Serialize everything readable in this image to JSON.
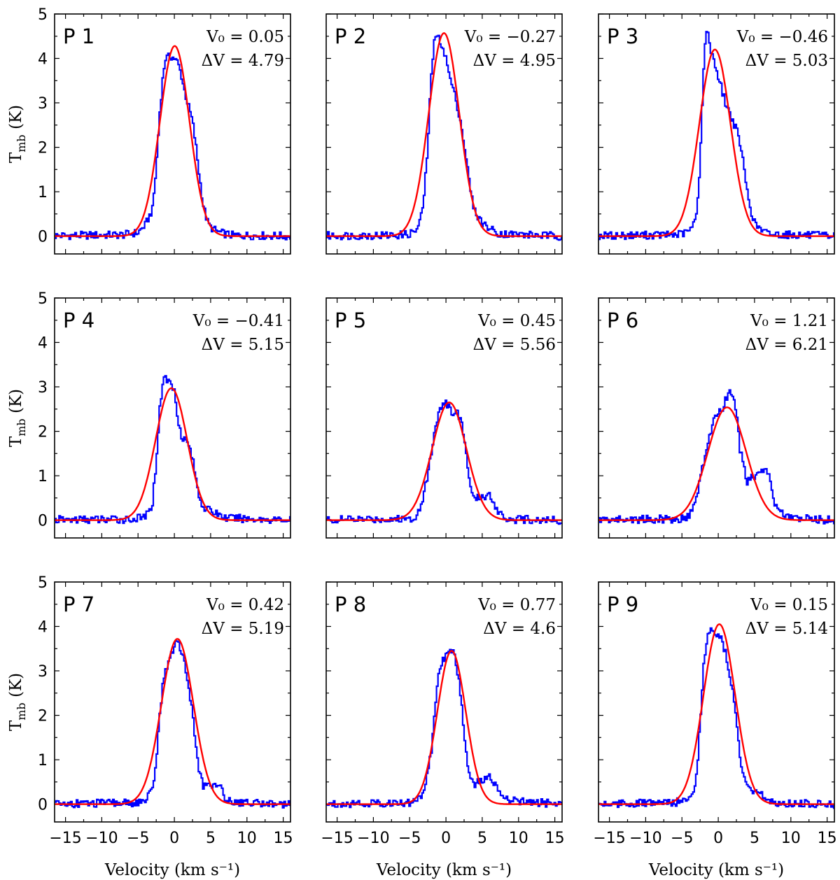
{
  "chart_data": {
    "type": "line",
    "title": "",
    "xlabel": "Velocity (km s⁻¹)",
    "ylabel": "T",
    "ylabel_sub": "mb",
    "ylabel_unit": "(K)",
    "xlim": [
      -16.5,
      16
    ],
    "ylim": [
      -0.4,
      5
    ],
    "xticks": [
      -15,
      -10,
      -5,
      0,
      5,
      10,
      15
    ],
    "xtick_labels": [
      "−15",
      "−10",
      "−5",
      "0",
      "5",
      "10",
      "15"
    ],
    "yticks": [
      0,
      1,
      2,
      3,
      4,
      5
    ],
    "ytick_labels": [
      "0",
      "1",
      "2",
      "3",
      "4",
      "5"
    ],
    "colors": {
      "observed": "#0000ff",
      "fit": "#ff0000"
    },
    "series_names": [
      "observed spectrum",
      "gaussian fit"
    ],
    "panels": [
      {
        "label": "P 1",
        "v0_text": "V₀ = 0.05",
        "dv_text": "ΔV = 4.79",
        "fit": {
          "amp": 4.28,
          "v0": 0.05,
          "fwhm": 4.79
        },
        "observed": [
          [
            -16.5,
            0.01
          ],
          [
            -7,
            0.03
          ],
          [
            -5,
            0.08
          ],
          [
            -4,
            0.25
          ],
          [
            -3,
            0.6
          ],
          [
            -2.5,
            1.5
          ],
          [
            -2,
            2.8
          ],
          [
            -1.5,
            3.7
          ],
          [
            -1.2,
            4.0
          ],
          [
            -0.5,
            4.05
          ],
          [
            0,
            4.0
          ],
          [
            0.5,
            3.9
          ],
          [
            1,
            3.6
          ],
          [
            1.5,
            3.2
          ],
          [
            2,
            2.9
          ],
          [
            2.5,
            2.6
          ],
          [
            3,
            2.0
          ],
          [
            3.5,
            1.3
          ],
          [
            4,
            0.7
          ],
          [
            4.5,
            0.35
          ],
          [
            5,
            0.2
          ],
          [
            6,
            0.1
          ],
          [
            7,
            0.05
          ],
          [
            8,
            0.02
          ],
          [
            16,
            0.0
          ]
        ]
      },
      {
        "label": "P 2",
        "v0_text": "V₀ = −0.27",
        "dv_text": "ΔV = 4.95",
        "fit": {
          "amp": 4.57,
          "v0": -0.27,
          "fwhm": 4.95
        },
        "observed": [
          [
            -16.5,
            0.01
          ],
          [
            -7,
            0.02
          ],
          [
            -5,
            0.05
          ],
          [
            -4,
            0.15
          ],
          [
            -3.5,
            0.35
          ],
          [
            -3,
            0.9
          ],
          [
            -2.5,
            2.0
          ],
          [
            -2,
            3.7
          ],
          [
            -1.5,
            4.5
          ],
          [
            -1,
            4.45
          ],
          [
            -0.5,
            4.3
          ],
          [
            0,
            4.0
          ],
          [
            0.5,
            3.6
          ],
          [
            1,
            3.3
          ],
          [
            1.5,
            3.0
          ],
          [
            2,
            2.6
          ],
          [
            2.5,
            2.1
          ],
          [
            3,
            1.5
          ],
          [
            3.5,
            0.9
          ],
          [
            4,
            0.55
          ],
          [
            5,
            0.3
          ],
          [
            6,
            0.18
          ],
          [
            7,
            0.08
          ],
          [
            8,
            0.05
          ],
          [
            16,
            0.0
          ]
        ]
      },
      {
        "label": "P 3",
        "v0_text": "V₀ = −0.46",
        "dv_text": "ΔV = 5.03",
        "fit": {
          "amp": 4.2,
          "v0": -0.46,
          "fwhm": 5.03
        },
        "observed": [
          [
            -16.5,
            0.01
          ],
          [
            -6,
            0.03
          ],
          [
            -4.5,
            0.07
          ],
          [
            -3.5,
            0.2
          ],
          [
            -3,
            0.5
          ],
          [
            -2.5,
            1.6
          ],
          [
            -2.2,
            3.0
          ],
          [
            -1.8,
            4.4
          ],
          [
            -1.5,
            4.6
          ],
          [
            -1,
            4.2
          ],
          [
            -0.5,
            3.9
          ],
          [
            0,
            3.6
          ],
          [
            0.5,
            3.3
          ],
          [
            1,
            3.0
          ],
          [
            1.5,
            2.8
          ],
          [
            2,
            2.6
          ],
          [
            2.5,
            2.4
          ],
          [
            3,
            2.1
          ],
          [
            3.5,
            1.6
          ],
          [
            4,
            1.0
          ],
          [
            4.5,
            0.6
          ],
          [
            5,
            0.3
          ],
          [
            6,
            0.12
          ],
          [
            7,
            0.05
          ],
          [
            16,
            0.0
          ]
        ]
      },
      {
        "label": "P 4",
        "v0_text": "V₀ = −0.41",
        "dv_text": "ΔV = 5.15",
        "fit": {
          "amp": 2.97,
          "v0": -0.41,
          "fwhm": 5.15
        },
        "observed": [
          [
            -16.5,
            0.01
          ],
          [
            -6,
            0.02
          ],
          [
            -4.5,
            0.05
          ],
          [
            -3.5,
            0.15
          ],
          [
            -3,
            0.4
          ],
          [
            -2.5,
            1.3
          ],
          [
            -2,
            2.5
          ],
          [
            -1.5,
            3.25
          ],
          [
            -1,
            3.15
          ],
          [
            -0.5,
            3.1
          ],
          [
            0,
            2.9
          ],
          [
            0.5,
            2.3
          ],
          [
            1,
            1.9
          ],
          [
            2,
            1.7
          ],
          [
            2.5,
            1.4
          ],
          [
            3,
            0.9
          ],
          [
            3.5,
            0.5
          ],
          [
            4,
            0.3
          ],
          [
            5,
            0.2
          ],
          [
            6,
            0.15
          ],
          [
            7,
            0.05
          ],
          [
            16,
            0.0
          ]
        ]
      },
      {
        "label": "P 5",
        "v0_text": "V₀ = 0.45",
        "dv_text": "ΔV = 5.56",
        "fit": {
          "amp": 2.65,
          "v0": 0.45,
          "fwhm": 5.56
        },
        "observed": [
          [
            -16.5,
            0.01
          ],
          [
            -5,
            0.03
          ],
          [
            -4,
            0.1
          ],
          [
            -3,
            0.6
          ],
          [
            -2,
            1.5
          ],
          [
            -1.5,
            2.1
          ],
          [
            -1,
            2.4
          ],
          [
            -0.5,
            2.6
          ],
          [
            0,
            2.65
          ],
          [
            0.5,
            2.5
          ],
          [
            1,
            2.4
          ],
          [
            1.5,
            2.45
          ],
          [
            2,
            2.3
          ],
          [
            2.5,
            1.9
          ],
          [
            3,
            1.2
          ],
          [
            3.5,
            0.6
          ],
          [
            4,
            0.45
          ],
          [
            5,
            0.55
          ],
          [
            6,
            0.55
          ],
          [
            6.5,
            0.45
          ],
          [
            7,
            0.25
          ],
          [
            8,
            0.08
          ],
          [
            9,
            0.02
          ],
          [
            16,
            0.0
          ]
        ]
      },
      {
        "label": "P 6",
        "v0_text": "V₀ = 1.21",
        "dv_text": "ΔV = 6.21",
        "fit": {
          "amp": 2.54,
          "v0": 1.21,
          "fwhm": 6.21
        },
        "observed": [
          [
            -16.5,
            0.01
          ],
          [
            -5,
            0.03
          ],
          [
            -4,
            0.1
          ],
          [
            -3,
            0.5
          ],
          [
            -2,
            1.3
          ],
          [
            -1.5,
            1.7
          ],
          [
            -1,
            2.0
          ],
          [
            -0.5,
            2.3
          ],
          [
            0,
            2.4
          ],
          [
            0.5,
            2.45
          ],
          [
            1,
            2.7
          ],
          [
            1.5,
            2.9
          ],
          [
            2,
            2.8
          ],
          [
            2.5,
            2.4
          ],
          [
            3,
            1.6
          ],
          [
            3.5,
            1.2
          ],
          [
            4,
            0.85
          ],
          [
            5,
            1.0
          ],
          [
            6,
            1.1
          ],
          [
            7,
            1.1
          ],
          [
            7.5,
            0.5
          ],
          [
            8,
            0.3
          ],
          [
            9,
            0.12
          ],
          [
            10,
            0.05
          ],
          [
            16,
            0.0
          ]
        ]
      },
      {
        "label": "P 7",
        "v0_text": "V₀ = 0.42",
        "dv_text": "ΔV = 5.19",
        "fit": {
          "amp": 3.72,
          "v0": 0.42,
          "fwhm": 5.19
        },
        "observed": [
          [
            -16.5,
            0.01
          ],
          [
            -5,
            0.03
          ],
          [
            -4,
            0.08
          ],
          [
            -3,
            0.3
          ],
          [
            -2.5,
            1.0
          ],
          [
            -2,
            2.0
          ],
          [
            -1.5,
            2.8
          ],
          [
            -1,
            3.1
          ],
          [
            -0.5,
            3.4
          ],
          [
            0,
            3.55
          ],
          [
            0.5,
            3.65
          ],
          [
            1,
            3.45
          ],
          [
            1.5,
            3.1
          ],
          [
            2,
            2.6
          ],
          [
            2.5,
            2.1
          ],
          [
            3,
            1.2
          ],
          [
            3.5,
            0.7
          ],
          [
            4,
            0.4
          ],
          [
            5,
            0.4
          ],
          [
            6,
            0.5
          ],
          [
            6.5,
            0.3
          ],
          [
            7,
            0.15
          ],
          [
            8,
            0.05
          ],
          [
            16,
            0.0
          ]
        ]
      },
      {
        "label": "P 8",
        "v0_text": "V₀ = 0.77",
        "dv_text": "ΔV = 4.6",
        "fit": {
          "amp": 3.45,
          "v0": 0.77,
          "fwhm": 4.6
        },
        "observed": [
          [
            -16.5,
            0.01
          ],
          [
            -5,
            0.03
          ],
          [
            -4,
            0.08
          ],
          [
            -3,
            0.3
          ],
          [
            -2,
            1.2
          ],
          [
            -1.5,
            2.2
          ],
          [
            -1,
            2.9
          ],
          [
            -0.5,
            3.2
          ],
          [
            0,
            3.35
          ],
          [
            0.5,
            3.4
          ],
          [
            1,
            3.5
          ],
          [
            1.5,
            3.1
          ],
          [
            2,
            2.5
          ],
          [
            2.5,
            1.6
          ],
          [
            3,
            0.9
          ],
          [
            3.5,
            0.6
          ],
          [
            4,
            0.45
          ],
          [
            5,
            0.55
          ],
          [
            6,
            0.6
          ],
          [
            7,
            0.45
          ],
          [
            7.5,
            0.25
          ],
          [
            8.5,
            0.08
          ],
          [
            16,
            0.0
          ]
        ]
      },
      {
        "label": "P 9",
        "v0_text": "V₀ = 0.15",
        "dv_text": "ΔV = 5.14",
        "fit": {
          "amp": 4.05,
          "v0": 0.15,
          "fwhm": 5.14
        },
        "observed": [
          [
            -16.5,
            0.01
          ],
          [
            -6,
            0.03
          ],
          [
            -4.5,
            0.1
          ],
          [
            -3.5,
            0.3
          ],
          [
            -3,
            0.6
          ],
          [
            -2.5,
            1.8
          ],
          [
            -2,
            3.2
          ],
          [
            -1.5,
            3.8
          ],
          [
            -1,
            3.9
          ],
          [
            -0.5,
            3.85
          ],
          [
            0,
            3.8
          ],
          [
            0.5,
            3.7
          ],
          [
            1,
            3.4
          ],
          [
            1.5,
            2.9
          ],
          [
            2,
            2.5
          ],
          [
            2.5,
            1.9
          ],
          [
            3,
            1.1
          ],
          [
            3.5,
            0.6
          ],
          [
            4,
            0.35
          ],
          [
            5,
            0.25
          ],
          [
            6,
            0.2
          ],
          [
            7,
            0.08
          ],
          [
            8,
            0.03
          ],
          [
            16,
            0.0
          ]
        ]
      }
    ]
  }
}
